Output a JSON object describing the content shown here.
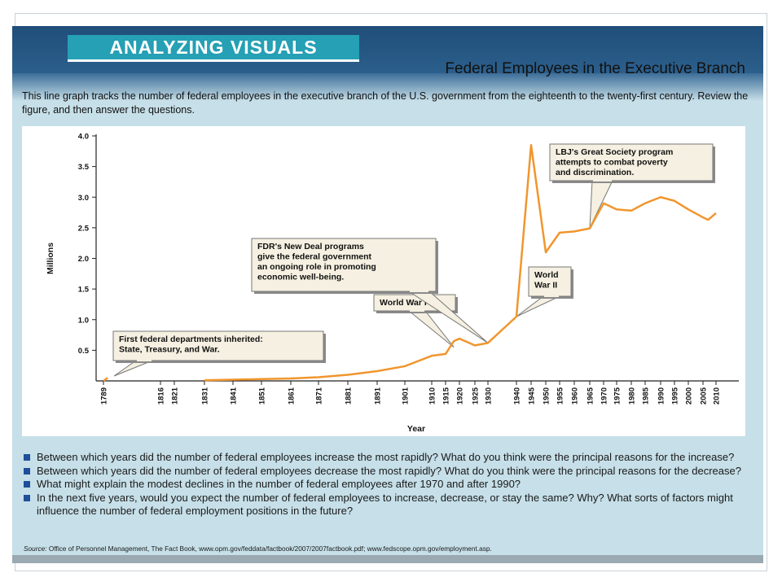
{
  "header": {
    "banner": "ANALYZING VISUALS",
    "title": "Federal Employees in the Executive Branch"
  },
  "intro": "This line graph tracks the number of federal employees in the executive branch of the U.S. government from the eighteenth to the twenty-first century. Review the figure, and then answer the questions.",
  "questions": [
    "Between which years did the number of federal employees increase the most rapidly? What do you think were the principal reasons for the increase?",
    "Between which years did the number of federal employees decrease the most rapidly? What do you think were the principal reasons for the decrease?",
    "What might explain the modest declines in the number of federal employees after 1970 and after 1990?",
    "In the next five years, would you expect the number of federal employees to increase, decrease, or stay the same? Why? What sorts of factors might influence the number of federal employment positions in the future?"
  ],
  "source": {
    "label": "Source:",
    "text": "Office of Personnel Management, The Fact Book, www.opm.gov/feddata/factbook/2007/2007factbook.pdf; www.fedscope.opm.gov/employment.asp."
  },
  "colors": {
    "line": "#f0962e",
    "callout_fill": "#f5f0e1",
    "banner": "#25a0b4",
    "top_bar": "#1f4e79",
    "background": "#c6dfe8"
  },
  "chart_data": {
    "type": "line",
    "xlabel": "Year",
    "ylabel": "Millions",
    "ylim": [
      0,
      4.0
    ],
    "yticks": [
      "0.5",
      "1.0",
      "1.5",
      "2.0",
      "2.5",
      "3.0",
      "3.5",
      "4.0"
    ],
    "xticks": [
      "1789",
      "1816",
      "1821",
      "1831",
      "1841",
      "1851",
      "1861",
      "1871",
      "1881",
      "1891",
      "1901",
      "1910",
      "1915",
      "1920",
      "1925",
      "1930",
      "1940",
      "1945",
      "1950",
      "1955",
      "1960",
      "1965",
      "1970",
      "1975",
      "1980",
      "1985",
      "1990",
      "1995",
      "2000",
      "2005",
      "2010"
    ],
    "grid": false,
    "series": [
      {
        "x": [
          1789,
          1791,
          1831,
          1841,
          1851,
          1861,
          1871,
          1881,
          1891,
          1901,
          1910,
          1915,
          1918,
          1920,
          1925,
          1930,
          1940,
          1945,
          1950,
          1955,
          1960,
          1965,
          1970,
          1975,
          1980,
          1985,
          1990,
          1995,
          2000,
          2005,
          2007,
          2010
        ],
        "y": [
          0.0,
          0.05,
          0.01,
          0.02,
          0.03,
          0.04,
          0.06,
          0.1,
          0.16,
          0.24,
          0.41,
          0.44,
          0.65,
          0.69,
          0.58,
          0.62,
          1.05,
          3.85,
          2.1,
          2.42,
          2.44,
          2.49,
          2.9,
          2.8,
          2.78,
          2.9,
          3.0,
          2.94,
          2.8,
          2.67,
          2.63,
          2.74
        ]
      }
    ],
    "annotations": [
      {
        "x": 1789,
        "y": 0.0,
        "lines": [
          "First federal departments inherited:",
          "State, Treasury, and War."
        ]
      },
      {
        "x": 1918,
        "y": 0.55,
        "lines": [
          "World War I"
        ]
      },
      {
        "x": 1930,
        "y": 0.62,
        "lines": [
          "FDR's New Deal programs",
          "give the federal government",
          "an ongoing role in promoting",
          "economic well-being."
        ]
      },
      {
        "x": 1940,
        "y": 1.05,
        "lines": [
          "World",
          "War II"
        ]
      },
      {
        "x": 1965,
        "y": 2.5,
        "lines": [
          "LBJ's Great Society program",
          "attempts to combat poverty",
          "and discrimination."
        ]
      }
    ]
  }
}
